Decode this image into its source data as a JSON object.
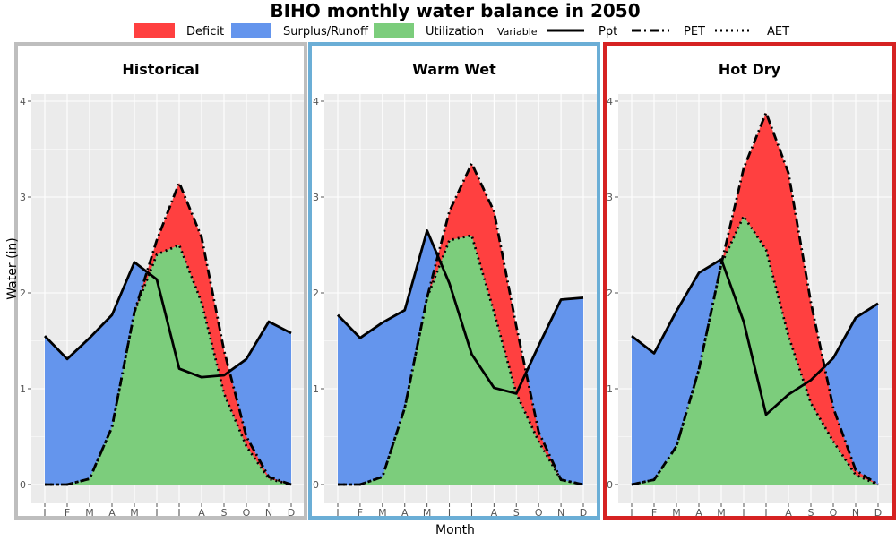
{
  "chart_data": {
    "type": "area",
    "title": "BIHO monthly water balance in 2050",
    "xlabel": "Month",
    "ylabel": "Water (in)",
    "ylim": [
      0,
      4
    ],
    "yticks": [
      "0",
      "1",
      "2",
      "3",
      "4"
    ],
    "months": [
      "J",
      "F",
      "M",
      "A",
      "M",
      "J",
      "J",
      "A",
      "S",
      "O",
      "N",
      "D"
    ],
    "legend": {
      "fill_items": [
        {
          "label": "Deficit",
          "color": "#ff4040"
        },
        {
          "label": "Surplus/Runoff",
          "color": "#6495ed"
        },
        {
          "label": "Utilization",
          "color": "#7ccd7c"
        }
      ],
      "variable_label": "Variable",
      "line_items": [
        {
          "label": "Ppt",
          "dash": "solid"
        },
        {
          "label": "PET",
          "dash": "dashdot"
        },
        {
          "label": "AET",
          "dash": "dotted"
        }
      ]
    },
    "panels": [
      {
        "name": "Historical",
        "border_color": "#bebebe",
        "ppt": [
          1.55,
          1.31,
          1.53,
          1.77,
          2.32,
          2.14,
          1.21,
          1.12,
          1.14,
          1.31,
          1.7,
          1.58
        ],
        "pet": [
          0.0,
          0.0,
          0.06,
          0.6,
          1.8,
          2.55,
          3.15,
          2.58,
          1.4,
          0.5,
          0.08,
          0.0
        ],
        "aet": [
          0.0,
          0.0,
          0.06,
          0.6,
          1.8,
          2.4,
          2.5,
          1.9,
          0.95,
          0.4,
          0.06,
          0.0
        ]
      },
      {
        "name": "Warm Wet",
        "border_color": "#6baed6",
        "ppt": [
          1.77,
          1.53,
          1.69,
          1.82,
          2.65,
          2.1,
          1.36,
          1.01,
          0.95,
          1.45,
          1.93,
          1.95
        ],
        "pet": [
          0.0,
          0.0,
          0.08,
          0.8,
          1.95,
          2.85,
          3.35,
          2.85,
          1.65,
          0.55,
          0.05,
          0.0
        ],
        "aet": [
          0.0,
          0.0,
          0.08,
          0.8,
          1.95,
          2.55,
          2.6,
          1.8,
          0.95,
          0.45,
          0.05,
          0.0
        ]
      },
      {
        "name": "Hot Dry",
        "border_color": "#d62222",
        "ppt": [
          1.55,
          1.37,
          1.81,
          2.21,
          2.35,
          1.7,
          0.73,
          0.94,
          1.09,
          1.32,
          1.74,
          1.89
        ],
        "pet": [
          0.0,
          0.05,
          0.4,
          1.2,
          2.3,
          3.3,
          3.88,
          3.25,
          1.9,
          0.8,
          0.15,
          0.0
        ],
        "aet": [
          0.0,
          0.05,
          0.4,
          1.2,
          2.3,
          2.8,
          2.45,
          1.55,
          0.85,
          0.45,
          0.1,
          0.0
        ]
      }
    ]
  }
}
